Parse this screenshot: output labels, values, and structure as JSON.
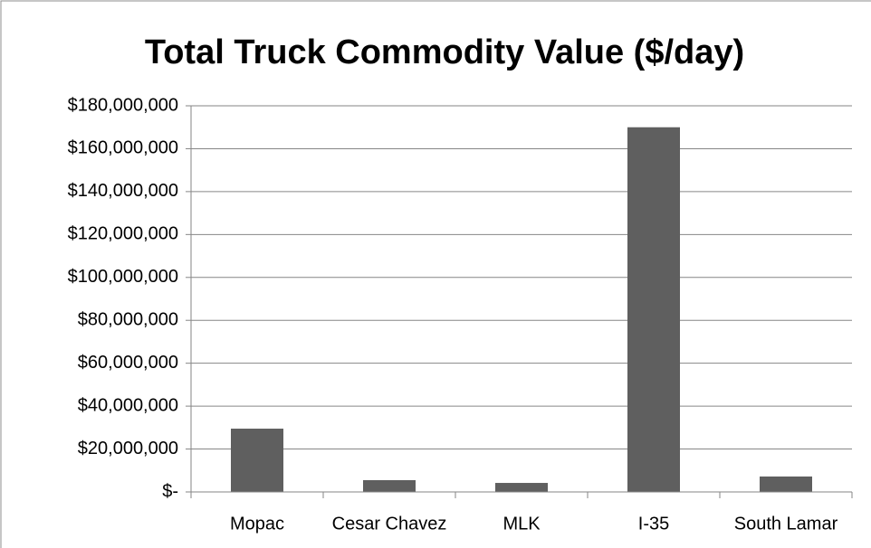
{
  "chart_data": {
    "type": "bar",
    "title": "Total Truck Commodity Value ($/day)",
    "categories": [
      "Mopac",
      "Cesar Chavez",
      "MLK",
      "I-35",
      "South Lamar"
    ],
    "values": [
      29500000,
      5500000,
      4200000,
      170000000,
      7200000
    ],
    "color": "#5f5f5f",
    "ylim": [
      0,
      180000000
    ],
    "yticks": [
      {
        "value": 0,
        "label": "$-"
      },
      {
        "value": 20000000,
        "label": "$20,000,000"
      },
      {
        "value": 40000000,
        "label": "$40,000,000"
      },
      {
        "value": 60000000,
        "label": "$60,000,000"
      },
      {
        "value": 80000000,
        "label": "$80,000,000"
      },
      {
        "value": 100000000,
        "label": "$100,000,000"
      },
      {
        "value": 120000000,
        "label": "$120,000,000"
      },
      {
        "value": 140000000,
        "label": "$140,000,000"
      },
      {
        "value": 160000000,
        "label": "$160,000,000"
      },
      {
        "value": 180000000,
        "label": "$180,000,000"
      }
    ],
    "grid": true
  }
}
